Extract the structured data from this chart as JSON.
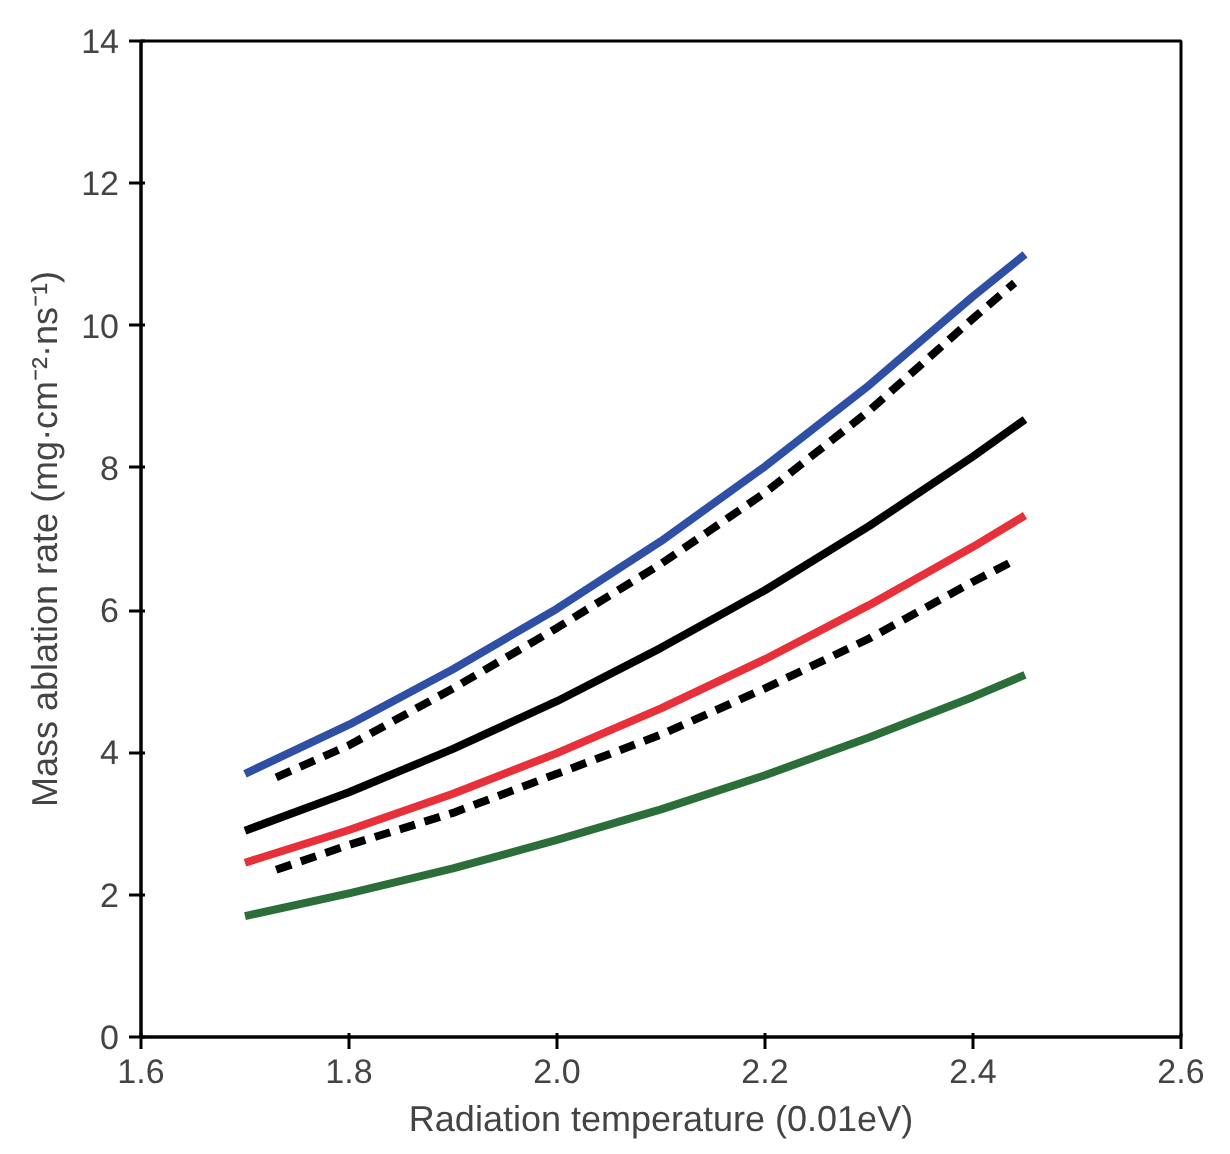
{
  "chart_data": {
    "type": "line",
    "xlabel": "Radiation temperature (0.01eV)",
    "ylabel": "Mass ablation rate (mg·cm⁻²·ns⁻¹)",
    "xlim": [
      1.6,
      2.6
    ],
    "xticks": [
      {
        "value": 1.6,
        "label": "1.6"
      },
      {
        "value": 1.8,
        "label": "1.8"
      },
      {
        "value": 2.0,
        "label": "2.0"
      },
      {
        "value": 2.2,
        "label": "2.2"
      },
      {
        "value": 2.4,
        "label": "2.4"
      },
      {
        "value": 2.6,
        "label": "2.6"
      }
    ],
    "ylim": [
      0,
      14
    ],
    "yticks": [
      0,
      2,
      4,
      6,
      8,
      10,
      12,
      14
    ],
    "grid": false,
    "series": [
      {
        "color": "#2e4fa3",
        "line_style": "solid",
        "x": [
          1.7,
          1.8,
          1.9,
          2.0,
          2.1,
          2.2,
          2.3,
          2.4,
          2.45
        ],
        "values": [
          3.7,
          4.39,
          5.17,
          6.02,
          6.97,
          8.02,
          9.16,
          10.41,
          11.0
        ]
      },
      {
        "color": "#000000",
        "line_style": "dashed",
        "x": [
          1.73,
          1.8,
          1.9,
          2.0,
          2.1,
          2.2,
          2.3,
          2.4,
          2.44
        ],
        "values": [
          3.65,
          4.1,
          4.9,
          5.75,
          6.65,
          7.65,
          8.8,
          10.1,
          10.6
        ]
      },
      {
        "color": "#000000",
        "line_style": "solid",
        "x": [
          1.7,
          1.8,
          1.9,
          2.0,
          2.1,
          2.2,
          2.3,
          2.4,
          2.45
        ],
        "values": [
          2.9,
          3.44,
          4.05,
          4.72,
          5.47,
          6.28,
          7.18,
          8.16,
          8.68
        ]
      },
      {
        "color": "#e8303a",
        "line_style": "solid",
        "x": [
          1.7,
          1.8,
          1.9,
          2.0,
          2.1,
          2.2,
          2.3,
          2.4,
          2.45
        ],
        "values": [
          2.45,
          2.91,
          3.42,
          3.99,
          4.62,
          5.31,
          6.07,
          6.89,
          7.33
        ]
      },
      {
        "color": "#000000",
        "line_style": "dashed",
        "x": [
          1.73,
          1.8,
          1.9,
          2.0,
          2.1,
          2.2,
          2.3,
          2.4,
          2.44
        ],
        "values": [
          2.35,
          2.7,
          3.15,
          3.7,
          4.25,
          4.9,
          5.6,
          6.4,
          6.7
        ]
      },
      {
        "color": "#2b6e3a",
        "line_style": "solid",
        "x": [
          1.7,
          1.8,
          1.9,
          2.0,
          2.1,
          2.2,
          2.3,
          2.4,
          2.45
        ],
        "values": [
          1.7,
          2.02,
          2.37,
          2.77,
          3.2,
          3.68,
          4.21,
          4.78,
          5.09
        ]
      }
    ]
  }
}
